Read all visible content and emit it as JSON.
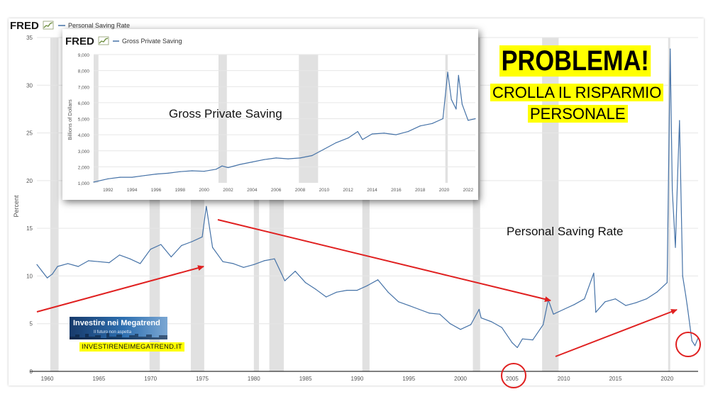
{
  "main_chart": {
    "brand": "FRED",
    "legend_label": "Personal Saving Rate",
    "ylabel": "Percent",
    "annotation_label": "Personal Saving Rate",
    "colors": {
      "line": "#4572a7",
      "recession": "#e1e1e1",
      "axis_text": "#555555"
    }
  },
  "inset_chart": {
    "brand": "FRED",
    "legend_label": "Gross Private Saving",
    "ylabel": "Billions of Dollars",
    "annotation_label": "Gross Private Saving"
  },
  "headline": {
    "title": "PROBLEMA!",
    "line1": "CROLLA IL RISPARMIO",
    "line2": "PERSONALE",
    "highlight_color": "#ffff00"
  },
  "badge": {
    "title": "Investire nei Megatrend",
    "tagline": "Il futuro non aspetta",
    "url": "INVESTIRENEIMEGATREND.IT"
  },
  "overlay_colors": {
    "arrow": "#e02020",
    "circle": "#e02020"
  },
  "chart_data": [
    {
      "type": "line",
      "title": "Personal Saving Rate",
      "ylabel": "Percent",
      "xlim": [
        1959,
        2023
      ],
      "ylim": [
        0,
        35
      ],
      "x_ticks": [
        1960,
        1965,
        1970,
        1975,
        1980,
        1985,
        1990,
        1995,
        2000,
        2005,
        2010,
        2015,
        2020
      ],
      "y_ticks": [
        0,
        5,
        10,
        15,
        20,
        25,
        30,
        35
      ],
      "grid": true,
      "recessions": [
        [
          1960.3,
          1961.1
        ],
        [
          1969.9,
          1970.9
        ],
        [
          1973.9,
          1975.2
        ],
        [
          1980.0,
          1980.5
        ],
        [
          1981.5,
          1982.9
        ],
        [
          1990.5,
          1991.2
        ],
        [
          2001.2,
          2001.9
        ],
        [
          2007.9,
          2009.5
        ],
        [
          2020.1,
          2020.3
        ]
      ],
      "series": [
        {
          "name": "Personal Saving Rate",
          "x": [
            1959.0,
            1959.5,
            1960.0,
            1960.5,
            1961.0,
            1962.0,
            1963.0,
            1964.0,
            1965.0,
            1966.0,
            1967.0,
            1968.0,
            1969.0,
            1970.0,
            1971.0,
            1972.0,
            1973.0,
            1974.0,
            1975.0,
            1975.4,
            1976.0,
            1977.0,
            1978.0,
            1979.0,
            1980.0,
            1981.0,
            1982.0,
            1983.0,
            1984.0,
            1985.0,
            1986.0,
            1987.0,
            1988.0,
            1989.0,
            1990.0,
            1991.0,
            1992.0,
            1993.0,
            1994.0,
            1995.0,
            1996.0,
            1997.0,
            1998.0,
            1999.0,
            2000.0,
            2001.0,
            2001.8,
            2002.0,
            2003.0,
            2004.0,
            2005.0,
            2005.5,
            2006.0,
            2007.0,
            2008.0,
            2008.5,
            2009.0,
            2010.0,
            2011.0,
            2012.0,
            2012.9,
            2013.1,
            2014.0,
            2015.0,
            2016.0,
            2017.0,
            2018.0,
            2019.0,
            2020.0,
            2020.3,
            2020.5,
            2020.8,
            2021.0,
            2021.2,
            2021.5,
            2021.8,
            2022.0,
            2022.4,
            2022.7,
            2023.0
          ],
          "values": [
            11.2,
            10.5,
            9.8,
            10.2,
            11.0,
            11.3,
            11.0,
            11.6,
            11.5,
            11.4,
            12.2,
            11.8,
            11.3,
            12.8,
            13.3,
            12.0,
            13.2,
            13.6,
            14.1,
            17.3,
            13.0,
            11.5,
            11.3,
            10.9,
            11.2,
            11.6,
            11.8,
            9.5,
            10.5,
            9.3,
            8.6,
            7.8,
            8.3,
            8.5,
            8.5,
            9.0,
            9.6,
            8.3,
            7.3,
            6.9,
            6.5,
            6.1,
            6.0,
            5.0,
            4.4,
            4.9,
            6.5,
            5.6,
            5.2,
            4.6,
            3.0,
            2.5,
            3.4,
            3.3,
            4.9,
            7.5,
            6.0,
            6.5,
            7.0,
            7.6,
            10.3,
            6.2,
            7.3,
            7.6,
            6.9,
            7.2,
            7.6,
            8.3,
            9.3,
            33.8,
            19.0,
            13.0,
            20.0,
            26.3,
            10.0,
            8.0,
            6.5,
            3.2,
            2.7,
            3.5
          ]
        }
      ]
    },
    {
      "type": "line",
      "title": "Gross Private Saving",
      "ylabel": "Billions of Dollars",
      "xlim": [
        1990.8,
        2022.6
      ],
      "ylim": [
        1000,
        9000
      ],
      "x_ticks": [
        1992,
        1994,
        1996,
        1998,
        2000,
        2002,
        2004,
        2006,
        2008,
        2010,
        2012,
        2014,
        2016,
        2018,
        2020,
        2022
      ],
      "y_ticks": [
        1000,
        2000,
        3000,
        4000,
        5000,
        6000,
        7000,
        8000,
        9000
      ],
      "grid": true,
      "recessions": [
        [
          1990.8,
          1991.2
        ],
        [
          2001.2,
          2001.9
        ],
        [
          2007.9,
          2009.5
        ],
        [
          2020.1,
          2020.3
        ]
      ],
      "series": [
        {
          "name": "Gross Private Saving",
          "x": [
            1990.8,
            1992.0,
            1993.0,
            1994.0,
            1995.0,
            1996.0,
            1997.0,
            1998.0,
            1999.0,
            2000.0,
            2001.0,
            2001.5,
            2002.0,
            2003.0,
            2004.0,
            2005.0,
            2006.0,
            2007.0,
            2008.0,
            2009.0,
            2010.0,
            2011.0,
            2012.0,
            2012.8,
            2013.2,
            2014.0,
            2015.0,
            2016.0,
            2017.0,
            2018.0,
            2019.0,
            2019.9,
            2020.3,
            2020.6,
            2021.0,
            2021.2,
            2021.5,
            2022.0,
            2022.6
          ],
          "values": [
            1050,
            1250,
            1350,
            1350,
            1450,
            1550,
            1600,
            1700,
            1750,
            1720,
            1850,
            2050,
            1950,
            2150,
            2300,
            2450,
            2550,
            2500,
            2550,
            2700,
            3100,
            3500,
            3800,
            4200,
            3700,
            4050,
            4100,
            4000,
            4200,
            4550,
            4700,
            5000,
            7900,
            6200,
            5600,
            7700,
            5900,
            4900,
            5000
          ]
        }
      ]
    }
  ]
}
